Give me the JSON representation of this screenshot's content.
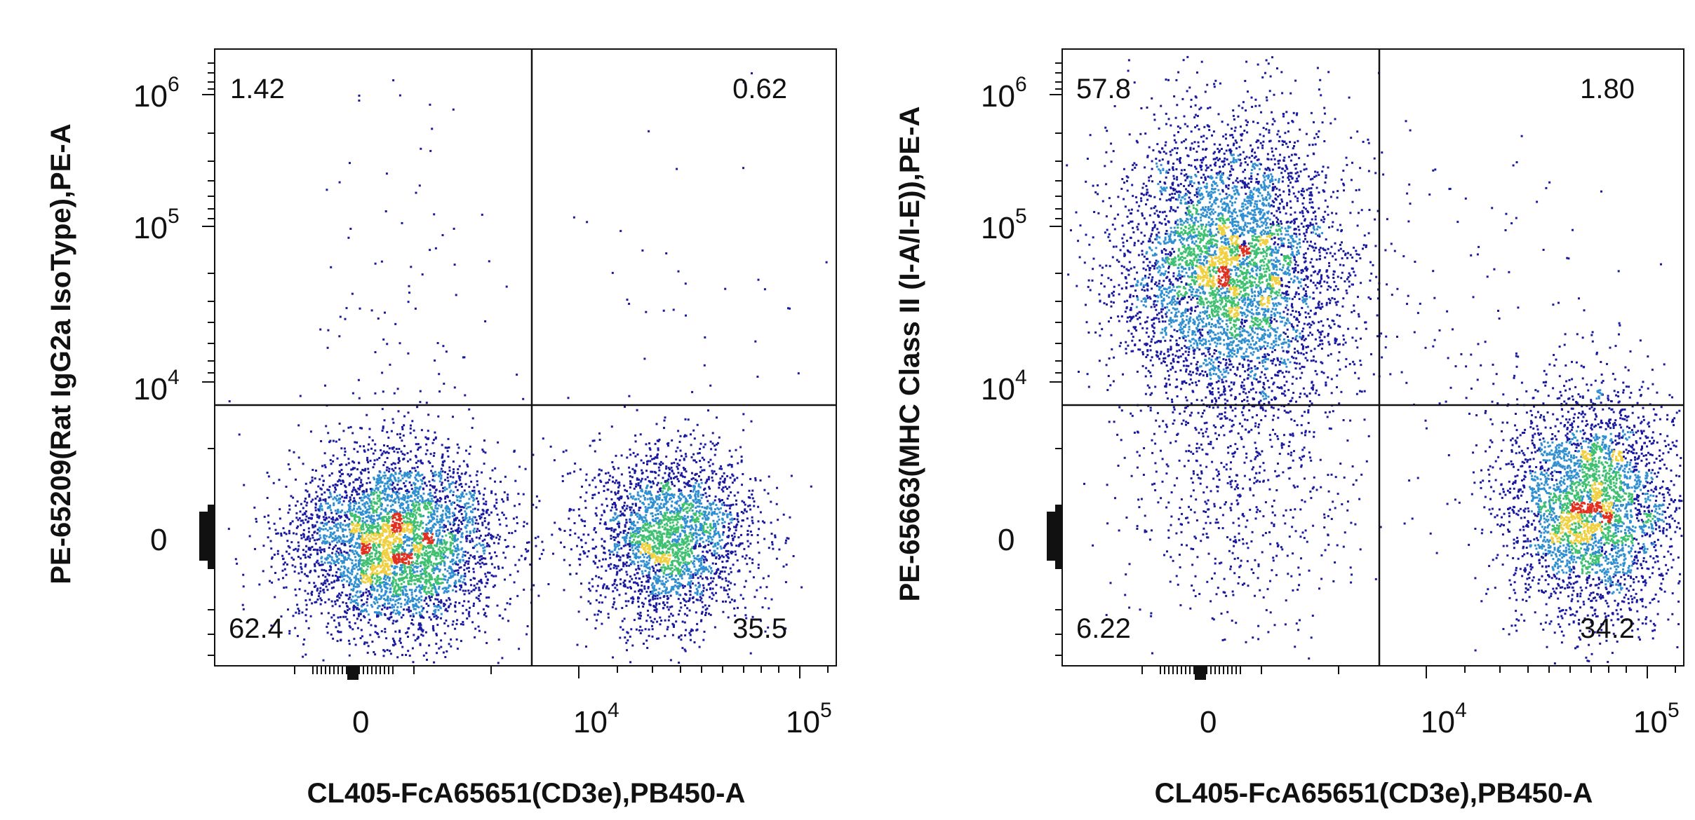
{
  "chart_data": [
    {
      "type": "scatter",
      "subtype": "flow-cytometry-density",
      "xlabel": "CL405-FcA65651(CD3e),PB450-A",
      "ylabel": "PE-65209(Rat IgG2a IsoType),PE-A",
      "x_scale": "biexponential",
      "y_scale": "biexponential",
      "x_ticks": [
        {
          "base": "0",
          "exp": ""
        },
        {
          "base": "10",
          "exp": "4"
        },
        {
          "base": "10",
          "exp": "5"
        }
      ],
      "y_ticks": [
        {
          "base": "10",
          "exp": "6"
        },
        {
          "base": "10",
          "exp": "5"
        },
        {
          "base": "10",
          "exp": "4"
        },
        {
          "base": "0",
          "exp": ""
        }
      ],
      "quadrants": {
        "upper_left": "1.42",
        "upper_right": "0.62",
        "lower_left": "62.4",
        "lower_right": "35.5"
      },
      "populations": [
        {
          "cx": 0.29,
          "cy": 0.8,
          "sx": 0.085,
          "sy": 0.075,
          "n": 4200
        },
        {
          "cx": 0.73,
          "cy": 0.79,
          "sx": 0.065,
          "sy": 0.07,
          "n": 2600
        },
        {
          "cx": 0.3,
          "cy": 0.4,
          "sx": 0.08,
          "sy": 0.18,
          "n": 90
        },
        {
          "cx": 0.78,
          "cy": 0.4,
          "sx": 0.12,
          "sy": 0.2,
          "n": 45
        }
      ],
      "gridlines": false,
      "legend": "none"
    },
    {
      "type": "scatter",
      "subtype": "flow-cytometry-density",
      "xlabel": "CL405-FcA65651(CD3e),PB450-A",
      "ylabel": "PE-65663(MHC Class II (I-A/I-E)),PE-A",
      "x_scale": "biexponential",
      "y_scale": "biexponential",
      "x_ticks": [
        {
          "base": "0",
          "exp": ""
        },
        {
          "base": "10",
          "exp": "4"
        },
        {
          "base": "10",
          "exp": "5"
        }
      ],
      "y_ticks": [
        {
          "base": "10",
          "exp": "6"
        },
        {
          "base": "10",
          "exp": "5"
        },
        {
          "base": "10",
          "exp": "4"
        },
        {
          "base": "0",
          "exp": ""
        }
      ],
      "quadrants": {
        "upper_left": "57.8",
        "upper_right": "1.80",
        "lower_left": "6.22",
        "lower_right": "34.2"
      },
      "populations": [
        {
          "cx": 0.27,
          "cy": 0.36,
          "sx": 0.09,
          "sy": 0.12,
          "n": 5200
        },
        {
          "cx": 0.85,
          "cy": 0.74,
          "sx": 0.07,
          "sy": 0.09,
          "n": 3400
        },
        {
          "cx": 0.28,
          "cy": 0.74,
          "sx": 0.09,
          "sy": 0.1,
          "n": 500
        },
        {
          "cx": 0.65,
          "cy": 0.45,
          "sx": 0.15,
          "sy": 0.18,
          "n": 120
        }
      ],
      "gridlines": false,
      "legend": "none"
    }
  ],
  "colors": {
    "density_low": "#1a1aa0",
    "density_mid": "#2f8fd0",
    "density_high": "#3ec070",
    "density_peak": "#f0d040",
    "density_max": "#e03020",
    "axis": "#111111",
    "background": "#ffffff"
  }
}
